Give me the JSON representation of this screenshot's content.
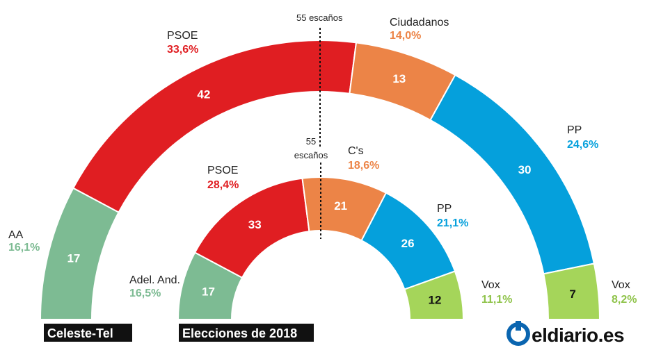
{
  "brand": {
    "name": "eldiario.es",
    "color": "#0a65b0"
  },
  "chart_data": [
    {
      "type": "parliament",
      "title": "Celeste-Tel",
      "majority_label": "55 escaños",
      "majority": 55,
      "series": [
        {
          "name": "AA",
          "seats": 17,
          "percent": "16,1%",
          "color": "#7dbb93",
          "pct_color": "#7dbb93"
        },
        {
          "name": "PSOE",
          "seats": 42,
          "percent": "33,6%",
          "color": "#e01e22",
          "pct_color": "#e01e22"
        },
        {
          "name": "Ciudadanos",
          "seats": 13,
          "percent": "14,0%",
          "color": "#ec8447",
          "pct_color": "#ec8447"
        },
        {
          "name": "PP",
          "seats": 30,
          "percent": "24,6%",
          "color": "#05a0dc",
          "pct_color": "#05a0dc"
        },
        {
          "name": "Vox",
          "seats": 7,
          "percent": "8,2%",
          "color": "#a5d55a",
          "pct_color": "#8fc34a"
        }
      ]
    },
    {
      "type": "parliament",
      "title": "Elecciones de 2018",
      "majority_label": "55\nescaños",
      "majority": 55,
      "series": [
        {
          "name": "Adel. And.",
          "seats": 17,
          "percent": "16,5%",
          "color": "#7dbb93",
          "pct_color": "#7dbb93"
        },
        {
          "name": "PSOE",
          "seats": 33,
          "percent": "28,4%",
          "color": "#e01e22",
          "pct_color": "#e01e22"
        },
        {
          "name": "C's",
          "seats": 21,
          "percent": "18,6%",
          "color": "#ec8447",
          "pct_color": "#ec8447"
        },
        {
          "name": "PP",
          "seats": 26,
          "percent": "21,1%",
          "color": "#05a0dc",
          "pct_color": "#05a0dc"
        },
        {
          "name": "Vox",
          "seats": 12,
          "percent": "11,1%",
          "color": "#a5d55a",
          "pct_color": "#8fc34a"
        }
      ]
    }
  ]
}
